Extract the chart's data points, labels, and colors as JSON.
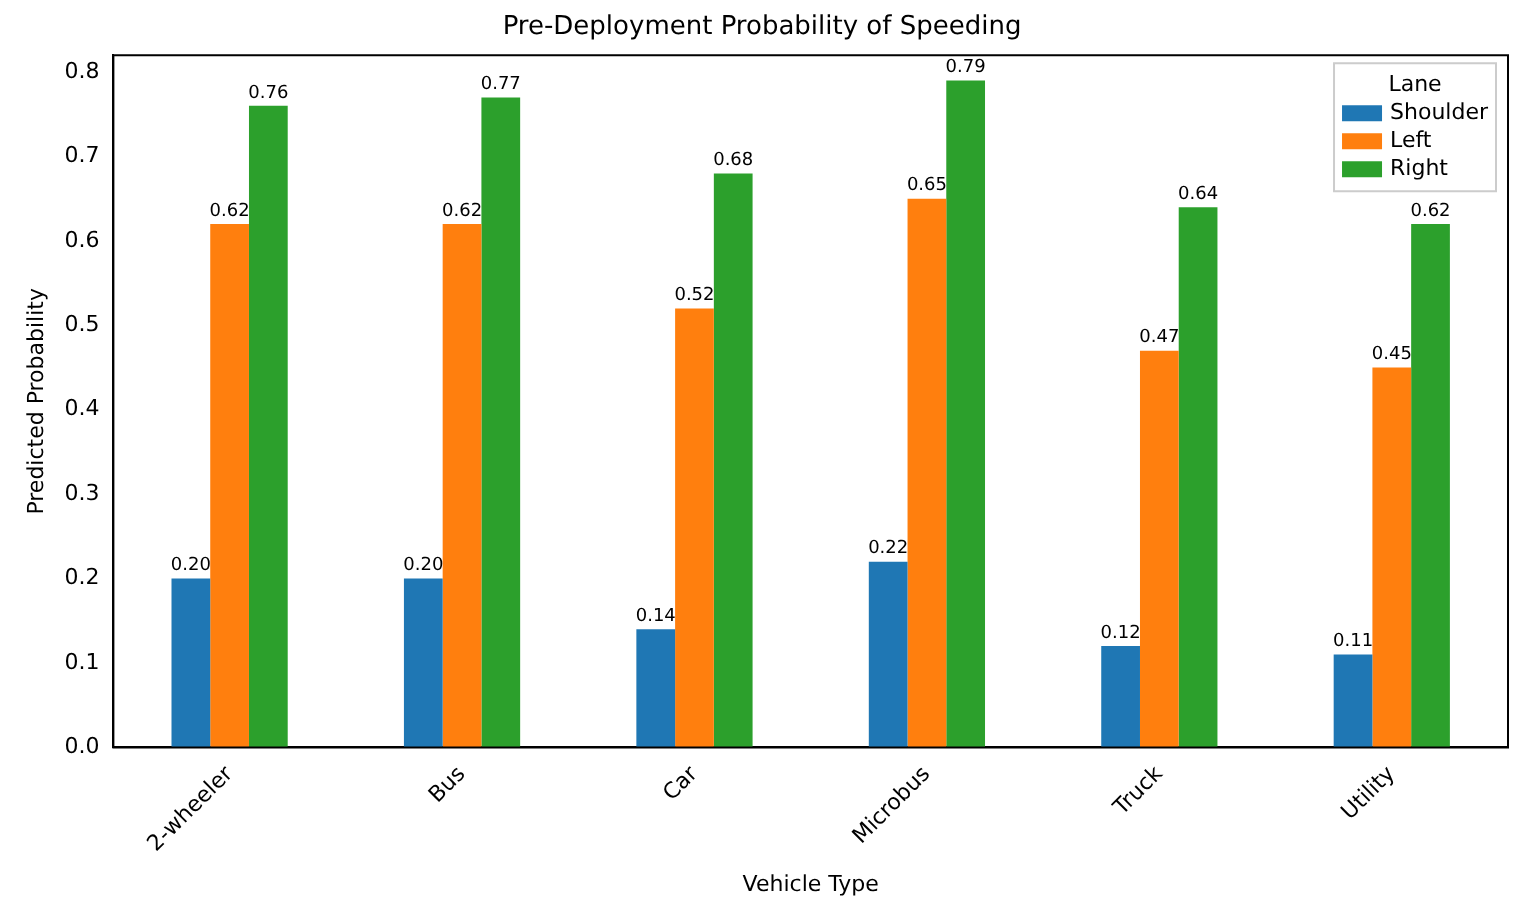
{
  "chart_data": {
    "type": "bar",
    "title": "Pre-Deployment Probability of Speeding",
    "xlabel": "Vehicle Type",
    "ylabel": "Predicted Probability",
    "legend_title": "Lane",
    "legend": "top right",
    "grid": false,
    "categories": [
      "2-wheeler",
      "Bus",
      "Car",
      "Microbus",
      "Truck",
      "Utility"
    ],
    "ylim": [
      0,
      0.82
    ],
    "yticks": [
      {
        "value": 0,
        "label": "0.0"
      },
      {
        "value": 0.1,
        "label": "0.1"
      },
      {
        "value": 0.2,
        "label": "0.2"
      },
      {
        "value": 0.3,
        "label": "0.3"
      },
      {
        "value": 0.4,
        "label": "0.4"
      },
      {
        "value": 0.5,
        "label": "0.5"
      },
      {
        "value": 0.6,
        "label": "0.6"
      },
      {
        "value": 0.7,
        "label": "0.7"
      },
      {
        "value": 0.8,
        "label": "0.8"
      }
    ],
    "series": [
      {
        "name": "Shoulder",
        "color": "#1f77b4",
        "values": [
          0.2,
          0.2,
          0.14,
          0.22,
          0.12,
          0.11
        ],
        "value_labels": [
          "0.20",
          "0.20",
          "0.14",
          "0.22",
          "0.12",
          "0.11"
        ]
      },
      {
        "name": "Left",
        "color": "#ff7f0e",
        "values": [
          0.62,
          0.62,
          0.52,
          0.65,
          0.47,
          0.45
        ],
        "value_labels": [
          "0.62",
          "0.62",
          "0.52",
          "0.65",
          "0.47",
          "0.45"
        ]
      },
      {
        "name": "Right",
        "color": "#2ca02c",
        "values": [
          0.76,
          0.77,
          0.68,
          0.79,
          0.64,
          0.62
        ],
        "value_labels": [
          "0.76",
          "0.77",
          "0.68",
          "0.79",
          "0.64",
          "0.62"
        ]
      }
    ]
  }
}
